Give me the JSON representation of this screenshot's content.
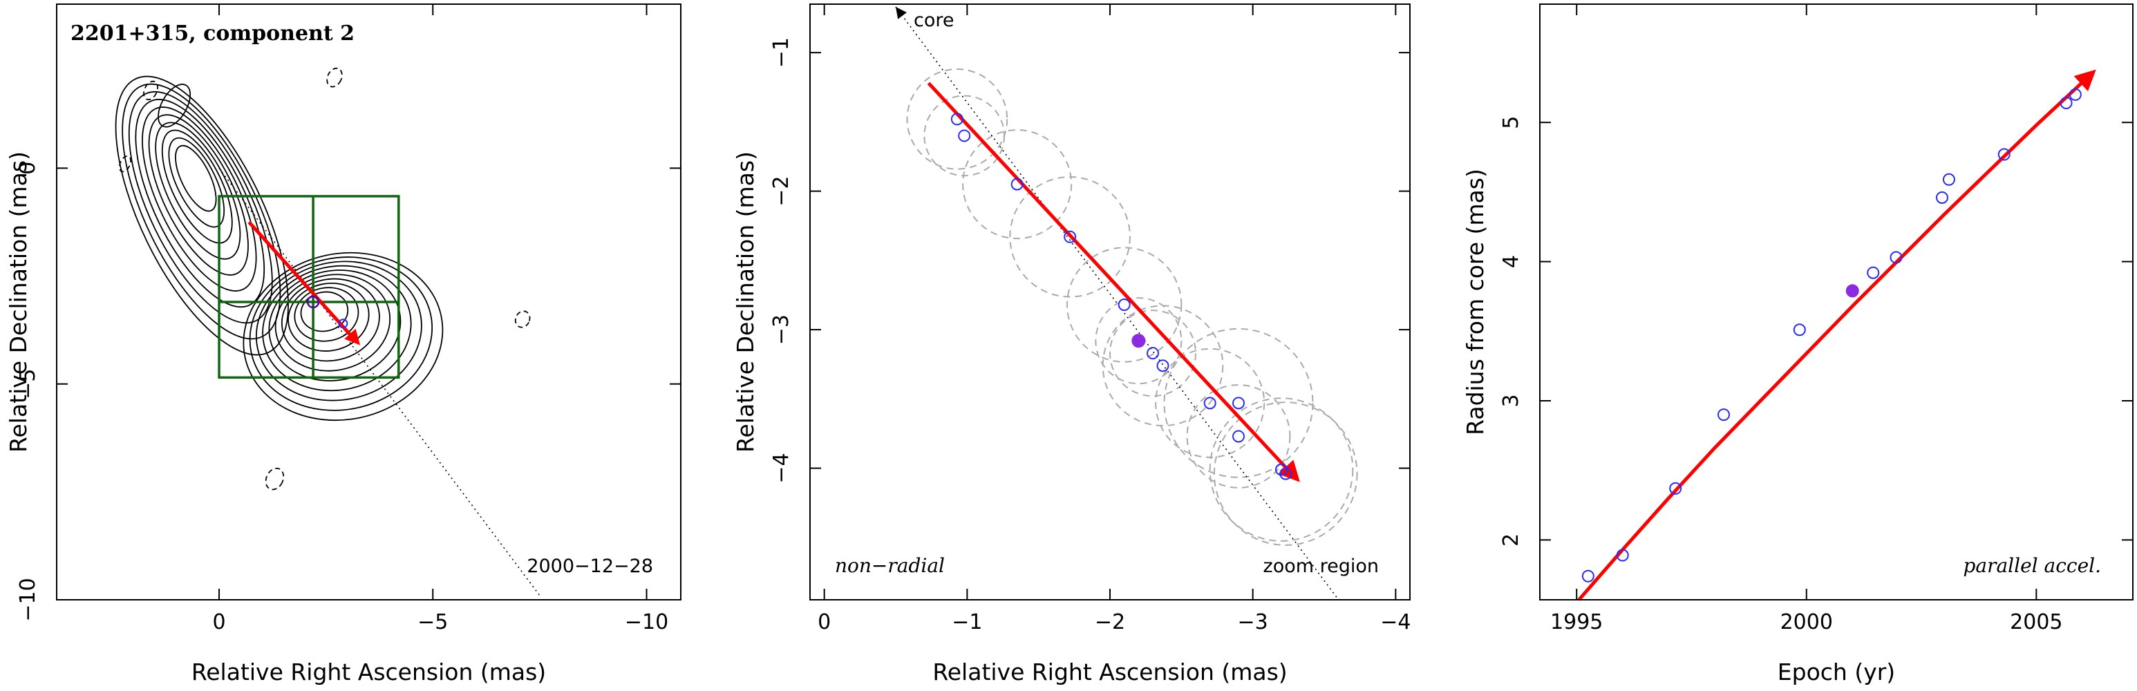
{
  "colors": {
    "fit": "#ff0000",
    "points_open": "#2a2aff",
    "points_filled": "#8a2be2",
    "zoom_box": "#116611",
    "circles": "#aaaaaa"
  },
  "chart_data": [
    {
      "type": "contour",
      "title": "2201+315, component 2",
      "xlabel": "Relative Right Ascension (mas)",
      "ylabel": "Relative Declination (mas)",
      "xlim": [
        3.8,
        -10.8
      ],
      "ylim": [
        -10,
        3.8
      ],
      "xticks": [
        {
          "v": 0,
          "label": "0"
        },
        {
          "v": -5,
          "label": "−5"
        },
        {
          "v": -10,
          "label": "−10"
        }
      ],
      "yticks": [
        {
          "v": 0,
          "label": "0"
        },
        {
          "v": -5,
          "label": "−5"
        },
        {
          "v": -10,
          "label": "−10"
        }
      ],
      "annotation": "2000−12−28",
      "zoom_box": {
        "ra": [
          0,
          -4.2
        ],
        "dec": [
          -0.65,
          -4.85
        ]
      },
      "core_direction_line": [
        [
          0,
          0
        ],
        [
          -7.5,
          -9.9
        ]
      ],
      "fit_track": [
        [
          -0.7,
          -1.25
        ],
        [
          -3.3,
          -4.1
        ]
      ],
      "component_position": [
        -2.2,
        -3.1
      ]
    },
    {
      "type": "scatter",
      "xlabel": "Relative Right Ascension (mas)",
      "ylabel": "Relative Declination (mas)",
      "xlim": [
        0.1,
        -4.1
      ],
      "ylim": [
        -4.95,
        -0.65
      ],
      "xticks": [
        {
          "v": 0,
          "label": "0"
        },
        {
          "v": -1,
          "label": "−1"
        },
        {
          "v": -2,
          "label": "−2"
        },
        {
          "v": -3,
          "label": "−3"
        },
        {
          "v": -4,
          "label": "−4"
        }
      ],
      "yticks": [
        {
          "v": -1,
          "label": "−1"
        },
        {
          "v": -2,
          "label": "−2"
        },
        {
          "v": -3,
          "label": "−3"
        },
        {
          "v": -4,
          "label": "−4"
        }
      ],
      "annotation_left": "non−radial",
      "annotation_right": "zoom region",
      "core_label": "core",
      "points": [
        {
          "x": -0.93,
          "y": -1.48,
          "r": 0.35
        },
        {
          "x": -0.98,
          "y": -1.6,
          "r": 0.28
        },
        {
          "x": -1.35,
          "y": -1.95,
          "r": 0.38
        },
        {
          "x": -1.72,
          "y": -2.33,
          "r": 0.42
        },
        {
          "x": -2.1,
          "y": -2.82,
          "r": 0.4
        },
        {
          "x": -2.3,
          "y": -3.17,
          "r": 0.3
        },
        {
          "x": -2.37,
          "y": -3.26,
          "r": 0.42
        },
        {
          "x": -2.7,
          "y": -3.53,
          "r": 0.38
        },
        {
          "x": -2.9,
          "y": -3.53,
          "r": 0.52
        },
        {
          "x": -2.9,
          "y": -3.77,
          "r": 0.36
        },
        {
          "x": -3.2,
          "y": -4.01,
          "r": 0.5
        },
        {
          "x": -3.23,
          "y": -4.04,
          "r": 0.5
        }
      ],
      "filled_point": {
        "x": -2.2,
        "y": -3.08,
        "r": 0.3
      },
      "fit_track": [
        [
          -0.73,
          -1.22
        ],
        [
          -3.33,
          -4.1
        ]
      ],
      "core_direction_line": [
        [
          -0.5,
          -0.65
        ],
        [
          -3.6,
          -4.95
        ]
      ]
    },
    {
      "type": "scatter",
      "xlabel": "Epoch (yr)",
      "ylabel": "Radius from core (mas)",
      "xlim": [
        1994.2,
        2007.1
      ],
      "ylim": [
        1.57,
        5.85
      ],
      "xticks": [
        {
          "v": 1995,
          "label": "1995"
        },
        {
          "v": 2000,
          "label": "2000"
        },
        {
          "v": 2005,
          "label": "2005"
        }
      ],
      "yticks": [
        {
          "v": 2,
          "label": "2"
        },
        {
          "v": 3,
          "label": "3"
        },
        {
          "v": 4,
          "label": "4"
        },
        {
          "v": 5,
          "label": "5"
        }
      ],
      "annotation": "parallel accel.",
      "points": [
        {
          "x": 1995.25,
          "y": 1.74
        },
        {
          "x": 1996.0,
          "y": 1.89
        },
        {
          "x": 1997.15,
          "y": 2.37
        },
        {
          "x": 1998.2,
          "y": 2.9
        },
        {
          "x": 1999.85,
          "y": 3.51
        },
        {
          "x": 2001.45,
          "y": 3.92
        },
        {
          "x": 2001.95,
          "y": 4.03
        },
        {
          "x": 2002.95,
          "y": 4.46
        },
        {
          "x": 2003.1,
          "y": 4.59
        },
        {
          "x": 2004.3,
          "y": 4.77
        },
        {
          "x": 2005.65,
          "y": 5.14
        },
        {
          "x": 2005.85,
          "y": 5.2
        }
      ],
      "filled_point": {
        "x": 2001.0,
        "y": 3.79
      },
      "fit_curve": [
        [
          1995.05,
          1.57
        ],
        [
          1996,
          1.93
        ],
        [
          1997,
          2.3
        ],
        [
          1998,
          2.66
        ],
        [
          1999,
          3.0
        ],
        [
          2000,
          3.34
        ],
        [
          2001,
          3.68
        ],
        [
          2002,
          4.01
        ],
        [
          2003,
          4.34
        ],
        [
          2004,
          4.66
        ],
        [
          2005,
          4.98
        ],
        [
          2006.3,
          5.38
        ]
      ]
    }
  ]
}
